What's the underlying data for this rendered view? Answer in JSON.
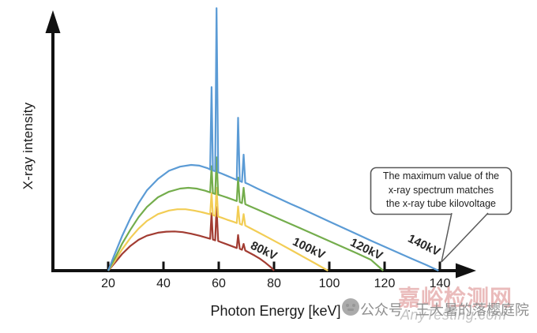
{
  "chart_data": {
    "type": "line",
    "title": "",
    "xlabel": "Photon Energy [keV]",
    "ylabel": "X-ray intensity",
    "x_ticks": [
      20,
      40,
      60,
      80,
      100,
      120,
      140
    ],
    "xlim": [
      0,
      152
    ],
    "ylim": [
      0,
      1.05
    ],
    "grid": false,
    "legend_position": "rotated labels along each curve tail",
    "characteristic_peaks_kev": [
      57.4,
      59.2,
      67.0,
      69.0
    ],
    "annotation": "The maximum value of the x-ray spectrum matches the x-ray tube kilovoltage",
    "annotation_lines": [
      "The maximum value of the",
      "x-ray spectrum matches",
      "the x-ray tube kilovoltage"
    ],
    "series": [
      {
        "name": "80kV",
        "color": "#a23c32",
        "points": [
          [
            20,
            0
          ],
          [
            22.5,
            0.032
          ],
          [
            25,
            0.065
          ],
          [
            28,
            0.097
          ],
          [
            31,
            0.121
          ],
          [
            34,
            0.137
          ],
          [
            38,
            0.149
          ],
          [
            41,
            0.153
          ],
          [
            44,
            0.154
          ],
          [
            47,
            0.151
          ],
          [
            50,
            0.145
          ],
          [
            53,
            0.137
          ],
          [
            56,
            0.128
          ],
          [
            56.9,
            0.125
          ],
          [
            57.4,
            0.225
          ],
          [
            57.9,
            0.122
          ],
          [
            58.7,
            0.119
          ],
          [
            59.2,
            0.25
          ],
          [
            59.8,
            0.116
          ],
          [
            61,
            0.111
          ],
          [
            63,
            0.103
          ],
          [
            65,
            0.095
          ],
          [
            66.5,
            0.089
          ],
          [
            67,
            0.14
          ],
          [
            67.6,
            0.086
          ],
          [
            68.4,
            0.082
          ],
          [
            69,
            0.105
          ],
          [
            69.6,
            0.079
          ],
          [
            71,
            0.071
          ],
          [
            73,
            0.059
          ],
          [
            75,
            0.046
          ],
          [
            77,
            0.03
          ],
          [
            79,
            0.012
          ],
          [
            80,
            0
          ]
        ]
      },
      {
        "name": "100kV",
        "color": "#f2cd55",
        "points": [
          [
            20,
            0
          ],
          [
            22.5,
            0.04
          ],
          [
            25,
            0.083
          ],
          [
            28,
            0.128
          ],
          [
            31,
            0.165
          ],
          [
            34,
            0.195
          ],
          [
            38,
            0.222
          ],
          [
            42,
            0.236
          ],
          [
            45,
            0.241
          ],
          [
            48,
            0.241
          ],
          [
            51,
            0.236
          ],
          [
            54,
            0.229
          ],
          [
            56.9,
            0.221
          ],
          [
            57.4,
            0.305
          ],
          [
            57.9,
            0.218
          ],
          [
            58.7,
            0.215
          ],
          [
            59.2,
            0.325
          ],
          [
            59.8,
            0.212
          ],
          [
            61,
            0.208
          ],
          [
            63,
            0.2
          ],
          [
            65,
            0.193
          ],
          [
            66.5,
            0.187
          ],
          [
            67,
            0.252
          ],
          [
            67.6,
            0.184
          ],
          [
            68.4,
            0.18
          ],
          [
            69,
            0.222
          ],
          [
            69.6,
            0.177
          ],
          [
            71,
            0.169
          ],
          [
            74,
            0.152
          ],
          [
            78,
            0.129
          ],
          [
            82,
            0.106
          ],
          [
            86,
            0.082
          ],
          [
            90,
            0.058
          ],
          [
            95,
            0.028
          ],
          [
            99.5,
            0
          ]
        ]
      },
      {
        "name": "120kV",
        "color": "#74ad4c",
        "points": [
          [
            20,
            0
          ],
          [
            22.5,
            0.05
          ],
          [
            25,
            0.105
          ],
          [
            28,
            0.16
          ],
          [
            31,
            0.21
          ],
          [
            34,
            0.25
          ],
          [
            38,
            0.288
          ],
          [
            42,
            0.31
          ],
          [
            46,
            0.322
          ],
          [
            49,
            0.325
          ],
          [
            52,
            0.322
          ],
          [
            55,
            0.314
          ],
          [
            56.9,
            0.307
          ],
          [
            57.4,
            0.41
          ],
          [
            57.9,
            0.304
          ],
          [
            58.7,
            0.301
          ],
          [
            59.2,
            0.445
          ],
          [
            59.8,
            0.298
          ],
          [
            61,
            0.294
          ],
          [
            63,
            0.287
          ],
          [
            65,
            0.279
          ],
          [
            66.5,
            0.273
          ],
          [
            67,
            0.365
          ],
          [
            67.6,
            0.269
          ],
          [
            68.4,
            0.265
          ],
          [
            69,
            0.325
          ],
          [
            69.6,
            0.261
          ],
          [
            71,
            0.254
          ],
          [
            74,
            0.24
          ],
          [
            78,
            0.221
          ],
          [
            82,
            0.202
          ],
          [
            86,
            0.183
          ],
          [
            90,
            0.164
          ],
          [
            95,
            0.14
          ],
          [
            100,
            0.116
          ],
          [
            105,
            0.092
          ],
          [
            110,
            0.068
          ],
          [
            115,
            0.043
          ],
          [
            119.5,
            0
          ]
        ]
      },
      {
        "name": "140kV",
        "color": "#5b9bd5",
        "points": [
          [
            20,
            0
          ],
          [
            22,
            0.055
          ],
          [
            25,
            0.135
          ],
          [
            28,
            0.205
          ],
          [
            31,
            0.265
          ],
          [
            34,
            0.315
          ],
          [
            38,
            0.36
          ],
          [
            42,
            0.392
          ],
          [
            46,
            0.408
          ],
          [
            50,
            0.415
          ],
          [
            53,
            0.412
          ],
          [
            56,
            0.402
          ],
          [
            56.9,
            0.397
          ],
          [
            57.4,
            0.72
          ],
          [
            57.9,
            0.393
          ],
          [
            58.7,
            0.39
          ],
          [
            59.2,
            1.03
          ],
          [
            59.8,
            0.386
          ],
          [
            61,
            0.381
          ],
          [
            63,
            0.372
          ],
          [
            65,
            0.363
          ],
          [
            66.5,
            0.356
          ],
          [
            67,
            0.6
          ],
          [
            67.6,
            0.352
          ],
          [
            68.4,
            0.348
          ],
          [
            69,
            0.455
          ],
          [
            69.6,
            0.345
          ],
          [
            71,
            0.338
          ],
          [
            74,
            0.322
          ],
          [
            78,
            0.302
          ],
          [
            82,
            0.282
          ],
          [
            86,
            0.262
          ],
          [
            90,
            0.243
          ],
          [
            95,
            0.218
          ],
          [
            100,
            0.193
          ],
          [
            105,
            0.168
          ],
          [
            110,
            0.143
          ],
          [
            115,
            0.118
          ],
          [
            120,
            0.094
          ],
          [
            125,
            0.07
          ],
          [
            130,
            0.046
          ],
          [
            135,
            0.023
          ],
          [
            139.5,
            0
          ]
        ]
      }
    ]
  },
  "watermarks": {
    "account_text": "公众号 · 王大暑的落樱庭院",
    "site_cn": "嘉峪检测网",
    "site_en": "AnyTesting.com"
  },
  "colors": {
    "axis": "#1a1a1a",
    "annotation_border": "#595959"
  }
}
